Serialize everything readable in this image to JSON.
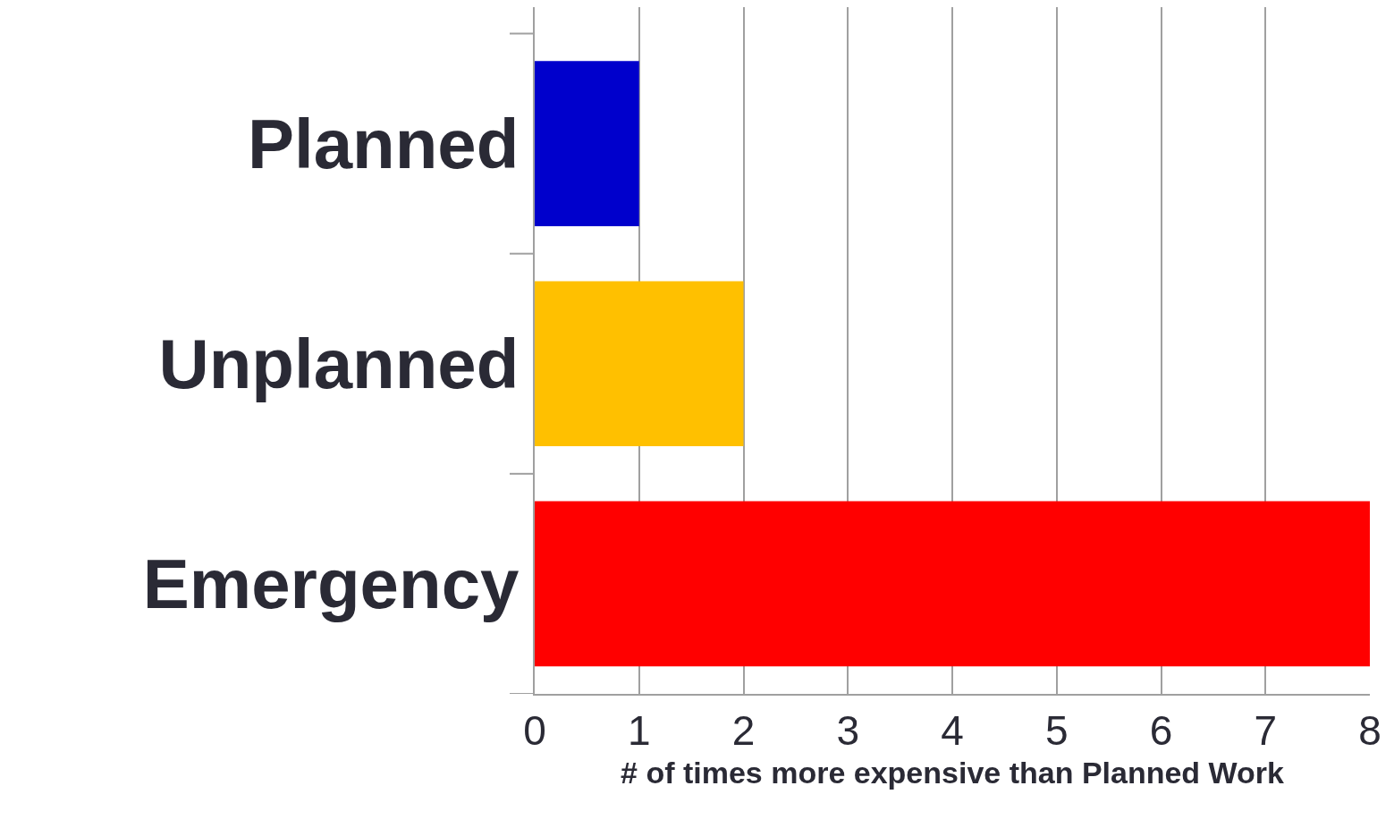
{
  "chart_data": {
    "type": "bar",
    "orientation": "horizontal",
    "categories": [
      "Planned",
      "Unplanned",
      "Emergency"
    ],
    "values": [
      1,
      2,
      8
    ],
    "colors": [
      "#0000cc",
      "#ffc000",
      "#ff0000"
    ],
    "xlabel": "# of times more expensive than Planned Work",
    "xlim": [
      0,
      8
    ],
    "xticks": [
      0,
      1,
      2,
      3,
      4,
      5,
      6,
      7,
      8
    ],
    "grid": "x"
  }
}
